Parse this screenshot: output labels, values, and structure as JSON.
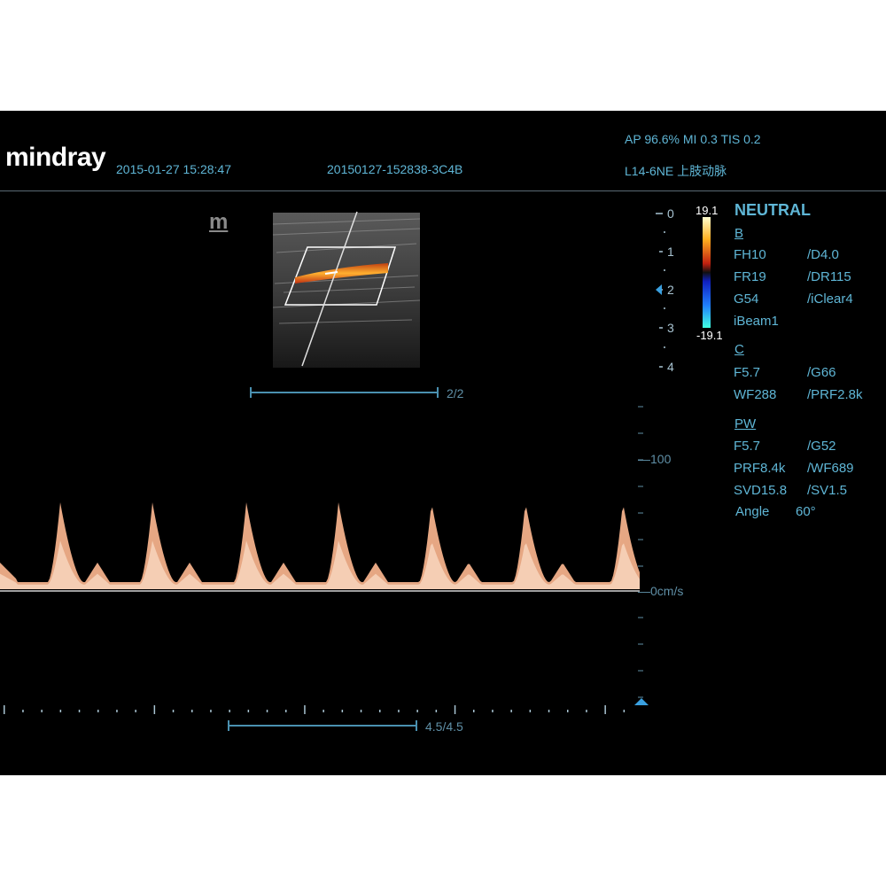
{
  "header": {
    "brand": "mindray",
    "datetime": "2015-01-27 15:28:47",
    "exam_id": "20150127-152838-3C4B",
    "power_line": "AP 96.6%  MI 0.3 TIS 0.2",
    "probe_line": "L14-6NE  上肢动脉"
  },
  "image": {
    "m_logo": "m",
    "depth_marks": [
      "0",
      "1",
      "2",
      "3",
      "4"
    ],
    "color_scale_top": "19.1",
    "color_scale_bottom": "-19.1",
    "frame_indicator": "2/2"
  },
  "params": {
    "preset": "NEUTRAL",
    "b_header": "B",
    "b_rows": [
      [
        "FH10",
        "/D4.0"
      ],
      [
        "FR19",
        "/DR115"
      ],
      [
        "G54",
        "/iClear4"
      ],
      [
        "iBeam1",
        ""
      ]
    ],
    "c_header": "C",
    "c_rows": [
      [
        "F5.7",
        "/G66"
      ],
      [
        "WF288",
        "/PRF2.8k"
      ]
    ],
    "pw_header": "PW",
    "pw_rows": [
      [
        "F5.7",
        "/G52"
      ],
      [
        "PRF8.4k",
        "/WF689"
      ],
      [
        "SVD15.8",
        "/SV1.5"
      ]
    ],
    "angle_label": "Angle",
    "angle_value": "60°"
  },
  "doppler": {
    "velocity_labels": [
      "100",
      "0cm/s"
    ],
    "sweep_indicator": "4.5/4.5",
    "peak_count": 7
  },
  "colors": {
    "text": "#5fb6d6",
    "spectrum": "#f2b08a",
    "background": "#000000"
  }
}
